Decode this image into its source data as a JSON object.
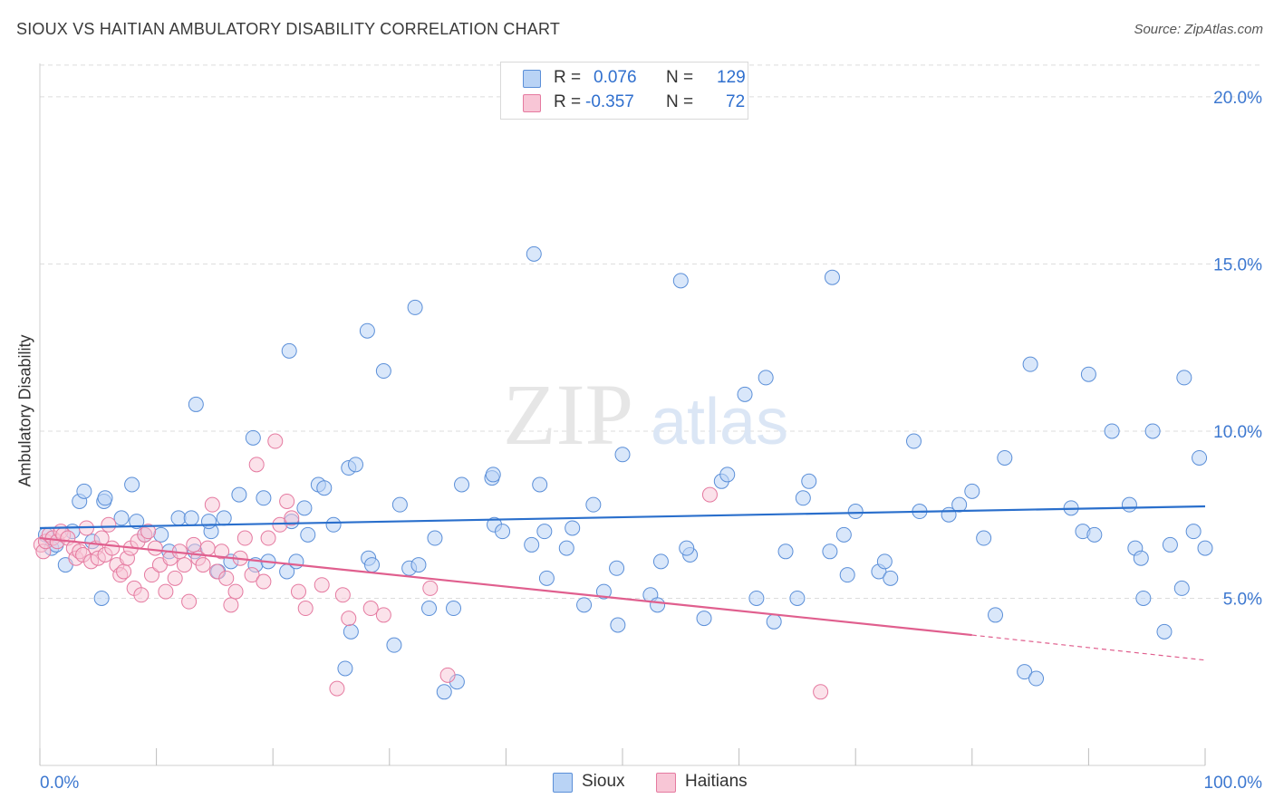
{
  "title": "SIOUX VS HAITIAN AMBULATORY DISABILITY CORRELATION CHART",
  "source": "Source: ZipAtlas.com",
  "watermark": {
    "zip": "ZIP",
    "atlas": "atlas"
  },
  "legend_top": {
    "rows": [
      {
        "r_label": "R =",
        "r_value": "0.076",
        "n_label": "N =",
        "n_value": "129"
      },
      {
        "r_label": "R =",
        "r_value": "-0.357",
        "n_label": "N =",
        "n_value": "72"
      }
    ]
  },
  "legend_bottom": {
    "items": [
      "Sioux",
      "Haitians"
    ]
  },
  "colors": {
    "sioux_fill": "#b9d3f5",
    "sioux_stroke": "#5b8fd8",
    "sioux_line": "#2a6fcc",
    "haitian_fill": "#f8c6d6",
    "haitian_stroke": "#e57aa0",
    "haitian_line": "#e05f8e",
    "tick_label": "#3d78d0",
    "grid": "#dcdcdc"
  },
  "chart_data": {
    "type": "scatter",
    "title": "SIOUX VS HAITIAN AMBULATORY DISABILITY CORRELATION CHART",
    "xlabel": "",
    "ylabel": "Ambulatory Disability",
    "xlim": [
      0,
      100
    ],
    "ylim": [
      0,
      21
    ],
    "x_tick_labels": [
      "0.0%",
      "100.0%"
    ],
    "y_ticks": [
      5,
      10,
      15,
      20
    ],
    "y_tick_labels": [
      "5.0%",
      "10.0%",
      "15.0%",
      "20.0%"
    ],
    "grid": true,
    "legend_position": "top-center",
    "series": [
      {
        "name": "Sioux",
        "r": 0.076,
        "n": 129,
        "trend": {
          "x": [
            0,
            100
          ],
          "y": [
            7.1,
            7.75
          ]
        },
        "points": [
          [
            0.5,
            6.9
          ],
          [
            1.0,
            6.5
          ],
          [
            1.4,
            6.6
          ],
          [
            2.2,
            6.0
          ],
          [
            2.8,
            7.0
          ],
          [
            3.4,
            7.9
          ],
          [
            3.8,
            8.2
          ],
          [
            4.5,
            6.7
          ],
          [
            5.5,
            7.9
          ],
          [
            5.6,
            8.0
          ],
          [
            5.3,
            5.0
          ],
          [
            7.0,
            7.4
          ],
          [
            7.9,
            8.4
          ],
          [
            8.3,
            7.3
          ],
          [
            9.0,
            6.9
          ],
          [
            10.4,
            6.9
          ],
          [
            11.1,
            6.4
          ],
          [
            11.9,
            7.4
          ],
          [
            13.3,
            6.4
          ],
          [
            13.0,
            7.4
          ],
          [
            13.4,
            10.8
          ],
          [
            14.7,
            7.0
          ],
          [
            15.8,
            7.4
          ],
          [
            16.4,
            6.1
          ],
          [
            17.1,
            8.1
          ],
          [
            18.5,
            6.0
          ],
          [
            14.5,
            7.3
          ],
          [
            18.3,
            9.8
          ],
          [
            19.2,
            8.0
          ],
          [
            19.6,
            6.1
          ],
          [
            15.3,
            5.8
          ],
          [
            21.2,
            5.8
          ],
          [
            21.4,
            12.4
          ],
          [
            22.0,
            6.1
          ],
          [
            21.6,
            7.3
          ],
          [
            22.7,
            7.7
          ],
          [
            23.9,
            8.4
          ],
          [
            23.0,
            6.9
          ],
          [
            24.4,
            8.3
          ],
          [
            25.2,
            7.2
          ],
          [
            26.7,
            4.0
          ],
          [
            26.5,
            8.9
          ],
          [
            26.2,
            2.9
          ],
          [
            27.1,
            9.0
          ],
          [
            28.1,
            13.0
          ],
          [
            28.2,
            6.2
          ],
          [
            28.5,
            6.0
          ],
          [
            29.5,
            11.8
          ],
          [
            30.4,
            3.6
          ],
          [
            30.9,
            7.8
          ],
          [
            31.7,
            5.9
          ],
          [
            32.5,
            6.0
          ],
          [
            32.2,
            13.7
          ],
          [
            33.4,
            4.7
          ],
          [
            33.9,
            6.8
          ],
          [
            34.7,
            2.2
          ],
          [
            35.8,
            2.5
          ],
          [
            35.5,
            4.7
          ],
          [
            36.2,
            8.4
          ],
          [
            38.8,
            8.6
          ],
          [
            38.9,
            8.7
          ],
          [
            39.0,
            7.2
          ],
          [
            39.7,
            7.0
          ],
          [
            42.2,
            6.6
          ],
          [
            42.4,
            15.3
          ],
          [
            42.9,
            8.4
          ],
          [
            43.3,
            7.0
          ],
          [
            43.5,
            5.6
          ],
          [
            45.2,
            6.5
          ],
          [
            45.7,
            7.1
          ],
          [
            46.7,
            4.8
          ],
          [
            47.5,
            7.8
          ],
          [
            48.4,
            5.2
          ],
          [
            49.5,
            5.9
          ],
          [
            49.6,
            4.2
          ],
          [
            50.0,
            9.3
          ],
          [
            52.4,
            5.1
          ],
          [
            53.0,
            4.8
          ],
          [
            53.3,
            6.1
          ],
          [
            55.0,
            14.5
          ],
          [
            55.8,
            6.3
          ],
          [
            55.5,
            6.5
          ],
          [
            57.0,
            4.4
          ],
          [
            58.5,
            8.5
          ],
          [
            60.5,
            11.1
          ],
          [
            59.0,
            8.7
          ],
          [
            61.5,
            5.0
          ],
          [
            62.3,
            11.6
          ],
          [
            63.0,
            4.3
          ],
          [
            64.0,
            6.4
          ],
          [
            65.5,
            8.0
          ],
          [
            65.0,
            5.0
          ],
          [
            66.0,
            8.5
          ],
          [
            67.8,
            6.4
          ],
          [
            68.0,
            14.6
          ],
          [
            69.3,
            5.7
          ],
          [
            69.0,
            6.9
          ],
          [
            70.0,
            7.6
          ],
          [
            72.0,
            5.8
          ],
          [
            72.5,
            6.1
          ],
          [
            73.0,
            5.6
          ],
          [
            75.0,
            9.7
          ],
          [
            75.5,
            7.6
          ],
          [
            78.0,
            7.5
          ],
          [
            78.9,
            7.8
          ],
          [
            80.0,
            8.2
          ],
          [
            81.0,
            6.8
          ],
          [
            82.0,
            4.5
          ],
          [
            82.8,
            9.2
          ],
          [
            84.5,
            2.8
          ],
          [
            85.0,
            12.0
          ],
          [
            85.5,
            2.6
          ],
          [
            88.5,
            7.7
          ],
          [
            89.5,
            7.0
          ],
          [
            90.0,
            11.7
          ],
          [
            90.5,
            6.9
          ],
          [
            92.0,
            10.0
          ],
          [
            93.5,
            7.8
          ],
          [
            94.0,
            6.5
          ],
          [
            94.5,
            6.2
          ],
          [
            94.7,
            5.0
          ],
          [
            95.5,
            10.0
          ],
          [
            96.5,
            4.0
          ],
          [
            97.0,
            6.6
          ],
          [
            98.0,
            5.3
          ],
          [
            98.2,
            11.6
          ],
          [
            99.0,
            7.0
          ],
          [
            99.5,
            9.2
          ],
          [
            100.0,
            6.5
          ]
        ]
      },
      {
        "name": "Haitians",
        "r": -0.357,
        "n": 72,
        "trend": {
          "x": [
            0,
            80
          ],
          "y": [
            6.8,
            3.9
          ]
        },
        "trend_dashed": {
          "x": [
            80,
            100
          ],
          "y": [
            3.9,
            3.15
          ]
        },
        "points": [
          [
            0.1,
            6.6
          ],
          [
            0.3,
            6.4
          ],
          [
            0.5,
            6.7
          ],
          [
            0.8,
            6.9
          ],
          [
            1.1,
            6.8
          ],
          [
            1.5,
            6.7
          ],
          [
            1.8,
            7.0
          ],
          [
            2.0,
            6.9
          ],
          [
            2.4,
            6.8
          ],
          [
            2.9,
            6.5
          ],
          [
            3.1,
            6.2
          ],
          [
            3.4,
            6.4
          ],
          [
            3.7,
            6.3
          ],
          [
            4.0,
            7.1
          ],
          [
            4.4,
            6.1
          ],
          [
            4.8,
            6.5
          ],
          [
            5.0,
            6.2
          ],
          [
            5.3,
            6.8
          ],
          [
            5.6,
            6.3
          ],
          [
            5.9,
            7.2
          ],
          [
            6.2,
            6.5
          ],
          [
            6.6,
            6.0
          ],
          [
            6.9,
            5.7
          ],
          [
            7.2,
            5.8
          ],
          [
            7.5,
            6.2
          ],
          [
            7.8,
            6.5
          ],
          [
            8.1,
            5.3
          ],
          [
            8.4,
            6.7
          ],
          [
            8.7,
            5.1
          ],
          [
            9.0,
            6.9
          ],
          [
            9.3,
            7.0
          ],
          [
            9.6,
            5.7
          ],
          [
            9.9,
            6.5
          ],
          [
            10.3,
            6.0
          ],
          [
            10.8,
            5.2
          ],
          [
            11.2,
            6.2
          ],
          [
            11.6,
            5.6
          ],
          [
            12.0,
            6.4
          ],
          [
            12.4,
            6.0
          ],
          [
            12.8,
            4.9
          ],
          [
            13.2,
            6.6
          ],
          [
            13.6,
            6.2
          ],
          [
            14.0,
            6.0
          ],
          [
            14.4,
            6.5
          ],
          [
            14.8,
            7.8
          ],
          [
            15.2,
            5.8
          ],
          [
            15.6,
            6.4
          ],
          [
            16.0,
            5.6
          ],
          [
            16.4,
            4.8
          ],
          [
            16.8,
            5.2
          ],
          [
            17.2,
            6.2
          ],
          [
            17.6,
            6.8
          ],
          [
            18.2,
            5.7
          ],
          [
            18.6,
            9.0
          ],
          [
            19.2,
            5.5
          ],
          [
            19.6,
            6.8
          ],
          [
            20.2,
            9.7
          ],
          [
            20.6,
            7.2
          ],
          [
            21.2,
            7.9
          ],
          [
            21.6,
            7.4
          ],
          [
            22.2,
            5.2
          ],
          [
            22.8,
            4.7
          ],
          [
            24.2,
            5.4
          ],
          [
            25.5,
            2.3
          ],
          [
            26.0,
            5.1
          ],
          [
            26.5,
            4.4
          ],
          [
            28.4,
            4.7
          ],
          [
            29.5,
            4.5
          ],
          [
            33.5,
            5.3
          ],
          [
            35.0,
            2.7
          ],
          [
            67.0,
            2.2
          ],
          [
            57.5,
            8.1
          ]
        ]
      }
    ]
  }
}
